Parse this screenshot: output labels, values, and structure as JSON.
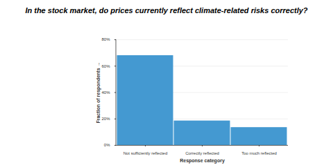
{
  "chart_data": {
    "type": "bar",
    "title": "In the stock market, do prices currently reflect climate-related risks correctly?",
    "x_label": "Response category",
    "y_label": "Fraction of respondents",
    "categories": [
      "Not sufficiently reflected",
      "Correctly reflected",
      "Too much reflected"
    ],
    "values": [
      68,
      18.5,
      13.5
    ],
    "color": "#4499d1",
    "ylim": [
      0,
      80
    ],
    "yticks": [
      {
        "value": 0,
        "label": "0%"
      },
      {
        "value": 20,
        "label": "20%"
      },
      {
        "value": 40,
        "label": "40%"
      },
      {
        "value": 60,
        "label": "60%"
      },
      {
        "value": 80,
        "label": "80%"
      }
    ],
    "grid": true
  }
}
